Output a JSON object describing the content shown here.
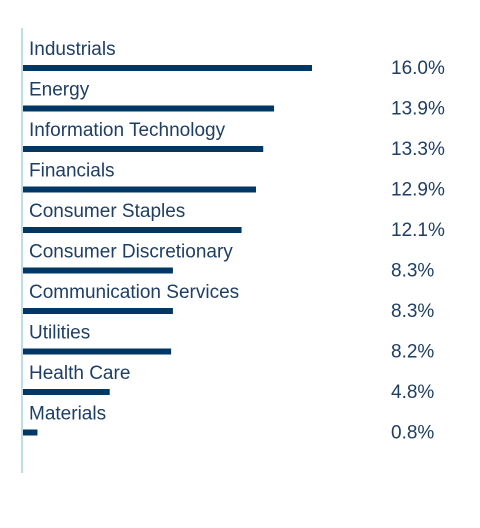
{
  "chart_data": {
    "type": "bar",
    "orientation": "horizontal",
    "categories": [
      "Industrials",
      "Energy",
      "Information Technology",
      "Financials",
      "Consumer Staples",
      "Consumer Discretionary",
      "Communication Services",
      "Utilities",
      "Health Care",
      "Materials"
    ],
    "values": [
      16.0,
      13.9,
      13.3,
      12.9,
      12.1,
      8.3,
      8.3,
      8.2,
      4.8,
      0.8
    ],
    "value_labels": [
      "16.0%",
      "13.9%",
      "13.3%",
      "12.9%",
      "12.1%",
      "8.3%",
      "8.3%",
      "8.2%",
      "4.8%",
      "0.8%"
    ],
    "title": "",
    "xlabel": "",
    "ylabel": "",
    "xlim": [
      0,
      16
    ],
    "grid": false,
    "legend": "none",
    "colors": {
      "bar": "#003764",
      "axis": "#a6d3e0",
      "category_text": "#1f3e63",
      "value_text": "#1f3e63"
    }
  }
}
